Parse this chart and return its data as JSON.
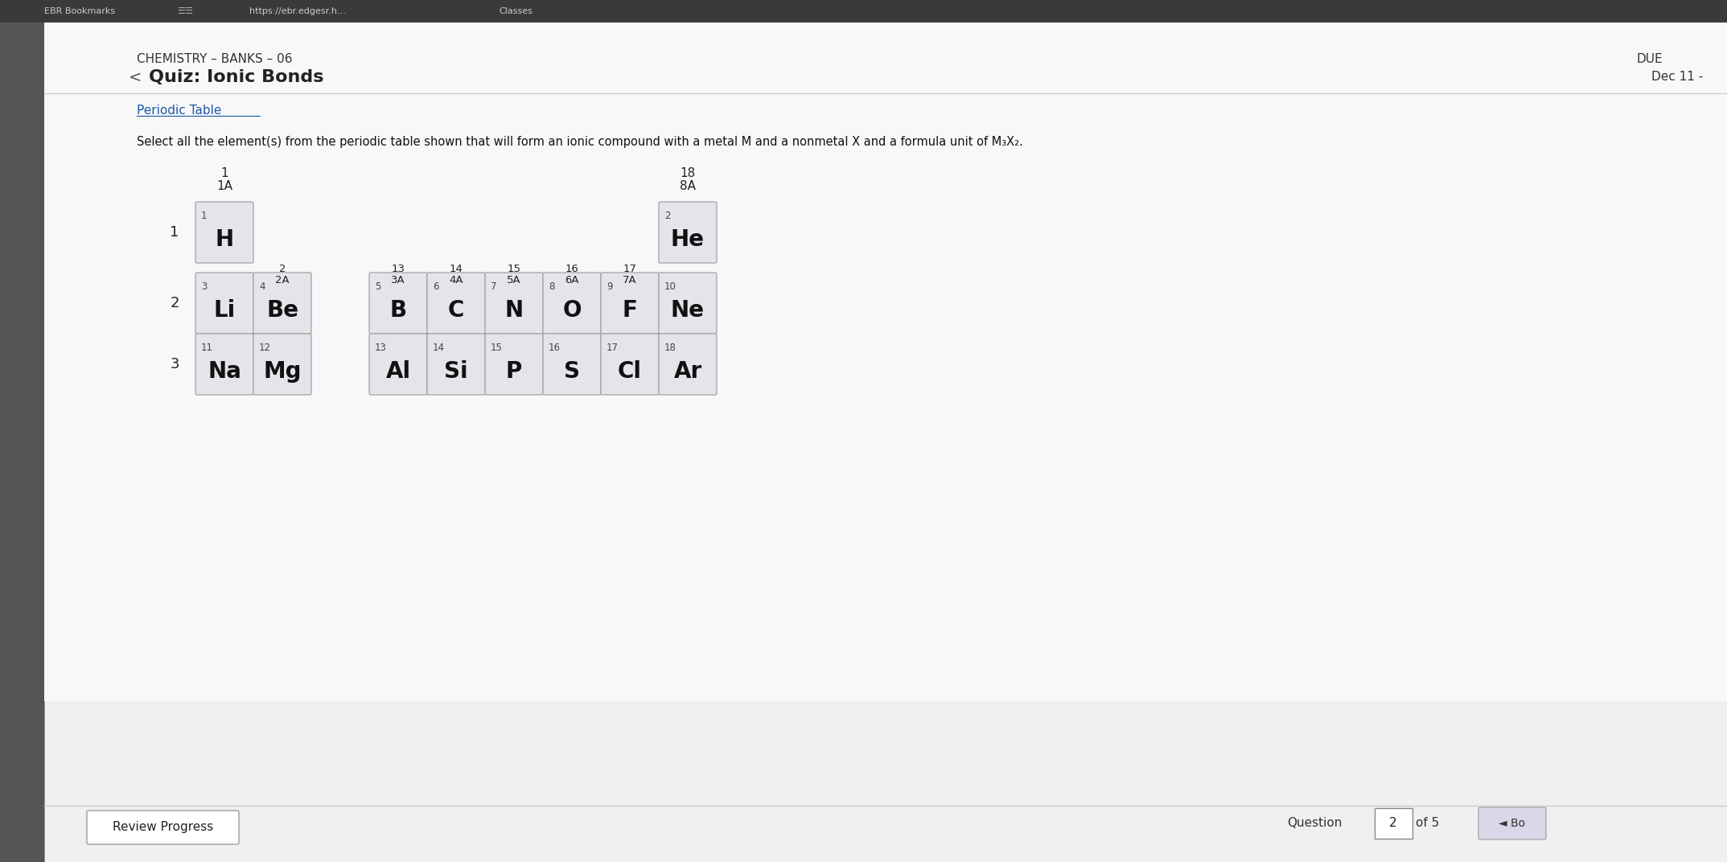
{
  "bg_outer": "#3a3a3a",
  "bg_gray": "#b8b8b8",
  "white_panel": "#f5f5f5",
  "cell_bg": "#e4e4ea",
  "cell_border": "#aaaaaa",
  "title_bar_bg": "#1e1e1e",
  "browser_bar_bg": "#2d2d2d",
  "header_text": "#222222",
  "link_color": "#1a56aa",
  "question_text": "Select all the element(s) from the periodic table shown that will form an ionic compound with a metal M and a nonmetal X and a formula unit of M₃X₂.",
  "course_title": "CHEMISTRY – BANKS – 06",
  "quiz_title": "Quiz: Ionic Bonds",
  "due_label": "DUE",
  "due_date": "Dec 11 -",
  "periodic_table_link": "Periodic Table",
  "question_num": "2",
  "total_questions": "5",
  "review_progress": "Review Progress",
  "back_button": "◄ Bo",
  "elements": [
    {
      "symbol": "H",
      "number": 1,
      "row": 1,
      "col": 1
    },
    {
      "symbol": "He",
      "number": 2,
      "row": 1,
      "col": 18
    },
    {
      "symbol": "Li",
      "number": 3,
      "row": 2,
      "col": 1
    },
    {
      "symbol": "Be",
      "number": 4,
      "row": 2,
      "col": 2
    },
    {
      "symbol": "B",
      "number": 5,
      "row": 2,
      "col": 13
    },
    {
      "symbol": "C",
      "number": 6,
      "row": 2,
      "col": 14
    },
    {
      "symbol": "N",
      "number": 7,
      "row": 2,
      "col": 15
    },
    {
      "symbol": "O",
      "number": 8,
      "row": 2,
      "col": 16
    },
    {
      "symbol": "F",
      "number": 9,
      "row": 2,
      "col": 17
    },
    {
      "symbol": "Ne",
      "number": 10,
      "row": 2,
      "col": 18
    },
    {
      "symbol": "Na",
      "number": 11,
      "row": 3,
      "col": 1
    },
    {
      "symbol": "Mg",
      "number": 12,
      "row": 3,
      "col": 2
    },
    {
      "symbol": "Al",
      "number": 13,
      "row": 3,
      "col": 13
    },
    {
      "symbol": "Si",
      "number": 14,
      "row": 3,
      "col": 14
    },
    {
      "symbol": "P",
      "number": 15,
      "row": 3,
      "col": 15
    },
    {
      "symbol": "S",
      "number": 16,
      "row": 3,
      "col": 16
    },
    {
      "symbol": "Cl",
      "number": 17,
      "row": 3,
      "col": 17
    },
    {
      "symbol": "Ar",
      "number": 18,
      "row": 3,
      "col": 18
    }
  ],
  "row_labels": [
    {
      "row": 1,
      "label": "1"
    },
    {
      "row": 2,
      "label": "2"
    },
    {
      "row": 3,
      "label": "3"
    }
  ],
  "col_group_headers": [
    {
      "col": 1,
      "num": "1",
      "letter": "1A",
      "above_row1": true
    },
    {
      "col": 2,
      "num": "2",
      "letter": "2A",
      "above_row1": false
    },
    {
      "col": 13,
      "num": "13",
      "letter": "3A",
      "above_row1": false
    },
    {
      "col": 14,
      "num": "14",
      "letter": "4A",
      "above_row1": false
    },
    {
      "col": 15,
      "num": "15",
      "letter": "5A",
      "above_row1": false
    },
    {
      "col": 16,
      "num": "16",
      "letter": "6A",
      "above_row1": false
    },
    {
      "col": 17,
      "num": "17",
      "letter": "7A",
      "above_row1": false
    },
    {
      "col": 18,
      "num": "18",
      "letter": "8A",
      "above_row1": true
    }
  ]
}
